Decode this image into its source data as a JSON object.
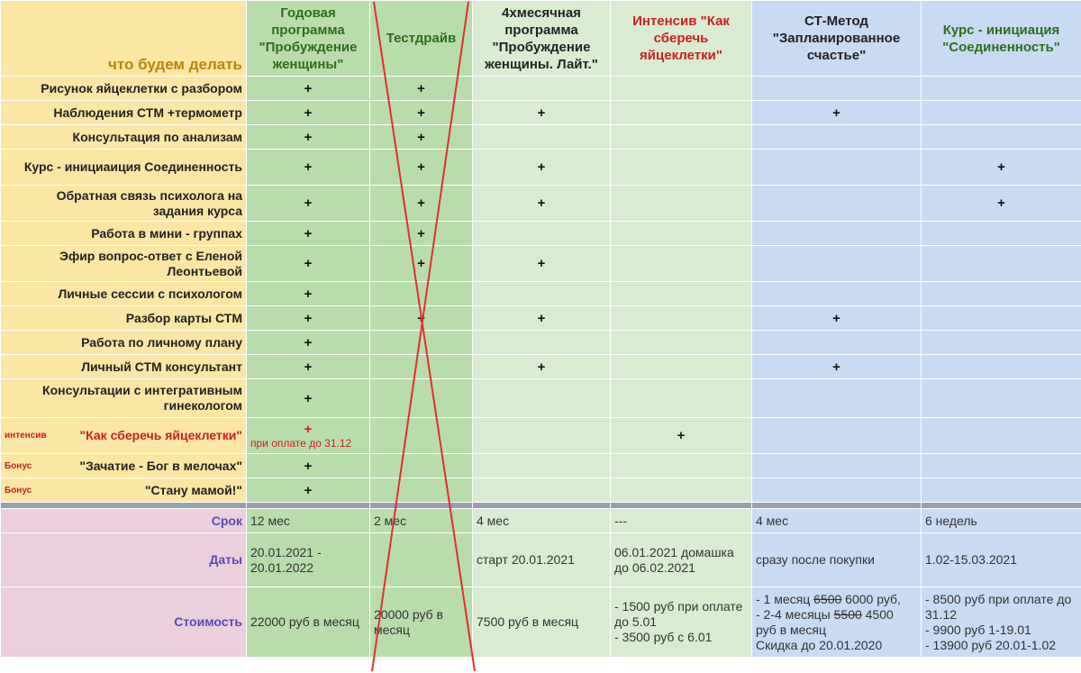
{
  "header": {
    "title": "что будем делать",
    "columns": [
      {
        "text": "Годовая программа \"Пробуждение женщины\"",
        "color": "green"
      },
      {
        "text": "Тестдрайв",
        "color": "green"
      },
      {
        "text": "4хмесячная программа \"Пробуждение женщины. Лайт.\"",
        "color": "black"
      },
      {
        "text": "Интенсив \"Как сберечь яйцеклетки\"",
        "color": "red"
      },
      {
        "text": "СТ-Метод \"Запланированное счастье\"",
        "color": "black"
      },
      {
        "text": "Курс - инициация \"Соединенность\"",
        "color": "green"
      }
    ]
  },
  "rows": [
    {
      "feature": "Рисунок яйцеклетки с разбором",
      "marks": [
        "+",
        "+",
        "",
        "",
        "",
        ""
      ]
    },
    {
      "feature": "Наблюдения СТМ +термометр",
      "marks": [
        "+",
        "+",
        "+",
        "",
        "+",
        ""
      ]
    },
    {
      "feature": "Консультация по анализам",
      "marks": [
        "+",
        "+",
        "",
        "",
        "",
        ""
      ]
    },
    {
      "feature": "Курс - инициаиция Соединенность",
      "marks": [
        "+",
        "+",
        "+",
        "",
        "",
        "+"
      ]
    },
    {
      "feature": "Обратная связь психолога на задания курса",
      "marks": [
        "+",
        "+",
        "+",
        "",
        "",
        "+"
      ]
    },
    {
      "feature": "Работа в мини - группах",
      "marks": [
        "+",
        "+",
        "",
        "",
        "",
        ""
      ]
    },
    {
      "feature": "Эфир вопрос-ответ с Еленой Леонтьевой",
      "marks": [
        "+",
        "+",
        "+",
        "",
        "",
        ""
      ]
    },
    {
      "feature": "Личные сессии с психологом",
      "marks": [
        "+",
        "",
        "",
        "",
        "",
        ""
      ]
    },
    {
      "feature": "Разбор карты СТМ",
      "marks": [
        "+",
        "+",
        "+",
        "",
        "+",
        ""
      ]
    },
    {
      "feature": "Работа по личному плану",
      "marks": [
        "+",
        "",
        "",
        "",
        "",
        ""
      ]
    },
    {
      "feature": "Личный СТМ консультант",
      "marks": [
        "+",
        "",
        "+",
        "",
        "+",
        ""
      ]
    },
    {
      "feature": "Консультации с интегративным гинекологом",
      "marks": [
        "+",
        "",
        "",
        "",
        "",
        ""
      ]
    },
    {
      "prefix": "интенсив",
      "feature": "\"Как сберечь яйцеклетки\"",
      "red": true,
      "marks": [
        "+",
        "",
        "",
        "+",
        "",
        ""
      ],
      "note": "при оплате до 31.12"
    },
    {
      "prefix": "Бонус",
      "feature": "\"Зачатие - Бог в мелочах\"",
      "marks": [
        "+",
        "",
        "",
        "",
        "",
        ""
      ]
    },
    {
      "prefix": "Бонус",
      "feature": "\"Стану мамой!\"",
      "marks": [
        "+",
        "",
        "",
        "",
        "",
        ""
      ]
    }
  ],
  "bottom": [
    {
      "label": "Срок",
      "values": [
        "12 мес",
        "2 мес",
        "4 мес",
        "---",
        "4 мес",
        "6 недель"
      ]
    },
    {
      "label": "Даты",
      "values": [
        "20.01.2021 - 20.01.2022",
        "",
        "старт 20.01.2021",
        "06.01.2021 домашка до 06.02.2021",
        "сразу после покупки",
        "1.02-15.03.2021"
      ]
    },
    {
      "label": "Стоимость",
      "values": [
        "22000 руб в месяц",
        "20000 руб в месяц",
        "7500 руб в месяц",
        "- 1500 руб при оплате до 5.01\n- 3500 руб с 6.01",
        "",
        "- 8500 руб при оплате до 31.12\n- 9900 руб 1-19.01\n- 13900 руб 20.01-1.02"
      ]
    }
  ],
  "stm_price": {
    "line1_pre": "- 1 месяц ",
    "line1_old": "6500",
    "line1_new": " 6000 руб,",
    "line2_pre": "- 2-4 месяцы ",
    "line2_old": "5500",
    "line2_new": " 4500 руб в месяц",
    "line3": "Скидка до 20.01.2020"
  }
}
